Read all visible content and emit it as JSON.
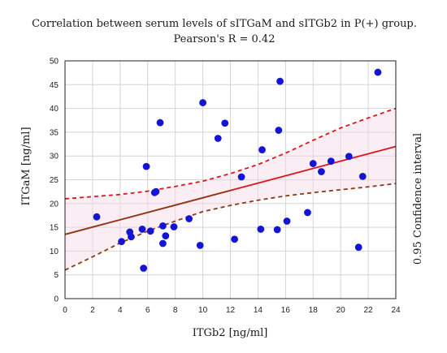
{
  "chart_data": {
    "type": "scatter",
    "title": "Correlation between serum levels of sITGaM and sITGb2 in P(+) group.",
    "subtitle": "Pearson's R = 0.42",
    "xlabel": "ITGb2 [ng/ml]",
    "ylabel": "ITGaM [ng/ml]",
    "right_label": "0.95 Confidence interval",
    "xlim": [
      0,
      24
    ],
    "ylim": [
      0,
      50
    ],
    "xticks": [
      0,
      2,
      4,
      6,
      8,
      10,
      12,
      14,
      16,
      18,
      20,
      22,
      24
    ],
    "yticks": [
      0,
      5,
      10,
      15,
      20,
      25,
      30,
      35,
      40,
      45,
      50
    ],
    "grid": true,
    "points": [
      {
        "x": 2.3,
        "y": 17.2
      },
      {
        "x": 4.1,
        "y": 12.0
      },
      {
        "x": 4.7,
        "y": 14.0
      },
      {
        "x": 4.8,
        "y": 13.0
      },
      {
        "x": 5.6,
        "y": 14.6
      },
      {
        "x": 5.7,
        "y": 6.4
      },
      {
        "x": 5.9,
        "y": 27.8
      },
      {
        "x": 6.2,
        "y": 14.2
      },
      {
        "x": 6.5,
        "y": 22.3
      },
      {
        "x": 6.6,
        "y": 22.5
      },
      {
        "x": 6.9,
        "y": 37.0
      },
      {
        "x": 7.1,
        "y": 15.3
      },
      {
        "x": 7.1,
        "y": 11.6
      },
      {
        "x": 7.3,
        "y": 13.2
      },
      {
        "x": 7.9,
        "y": 15.1
      },
      {
        "x": 9.0,
        "y": 16.8
      },
      {
        "x": 9.8,
        "y": 11.2
      },
      {
        "x": 10.0,
        "y": 41.2
      },
      {
        "x": 11.1,
        "y": 33.7
      },
      {
        "x": 11.6,
        "y": 36.9
      },
      {
        "x": 12.3,
        "y": 12.5
      },
      {
        "x": 12.8,
        "y": 25.6
      },
      {
        "x": 14.2,
        "y": 14.6
      },
      {
        "x": 14.3,
        "y": 31.3
      },
      {
        "x": 15.4,
        "y": 14.5
      },
      {
        "x": 15.5,
        "y": 35.4
      },
      {
        "x": 15.6,
        "y": 45.7
      },
      {
        "x": 16.1,
        "y": 16.3
      },
      {
        "x": 17.6,
        "y": 18.1
      },
      {
        "x": 18.0,
        "y": 28.4
      },
      {
        "x": 18.6,
        "y": 26.7
      },
      {
        "x": 19.3,
        "y": 28.9
      },
      {
        "x": 20.6,
        "y": 29.9
      },
      {
        "x": 21.3,
        "y": 10.8
      },
      {
        "x": 21.6,
        "y": 25.7
      },
      {
        "x": 22.7,
        "y": 47.6
      }
    ],
    "regression": {
      "intercept": 13.5,
      "slope": 0.7708
    },
    "confidence_upper": [
      {
        "x": 0,
        "y": 21.0
      },
      {
        "x": 4,
        "y": 21.9
      },
      {
        "x": 6,
        "y": 22.6
      },
      {
        "x": 8,
        "y": 23.6
      },
      {
        "x": 10,
        "y": 24.7
      },
      {
        "x": 12,
        "y": 26.3
      },
      {
        "x": 14,
        "y": 28.2
      },
      {
        "x": 16,
        "y": 30.6
      },
      {
        "x": 18,
        "y": 33.3
      },
      {
        "x": 20,
        "y": 35.9
      },
      {
        "x": 22,
        "y": 38.0
      },
      {
        "x": 24,
        "y": 40.0
      }
    ],
    "confidence_lower": [
      {
        "x": 0,
        "y": 6.0
      },
      {
        "x": 2,
        "y": 8.8
      },
      {
        "x": 4,
        "y": 11.7
      },
      {
        "x": 6,
        "y": 14.2
      },
      {
        "x": 8,
        "y": 16.3
      },
      {
        "x": 10,
        "y": 18.3
      },
      {
        "x": 12,
        "y": 19.6
      },
      {
        "x": 14,
        "y": 20.7
      },
      {
        "x": 16,
        "y": 21.6
      },
      {
        "x": 18,
        "y": 22.3
      },
      {
        "x": 20,
        "y": 22.9
      },
      {
        "x": 22,
        "y": 23.5
      },
      {
        "x": 24,
        "y": 24.2
      }
    ],
    "colors": {
      "points": "#1414d6",
      "regression": "#e0141e",
      "upper_band": "#e0141e",
      "lower_band": "#8b3a14",
      "grid": "#d4d4d4",
      "band_fill": "#f5d6e6"
    }
  }
}
